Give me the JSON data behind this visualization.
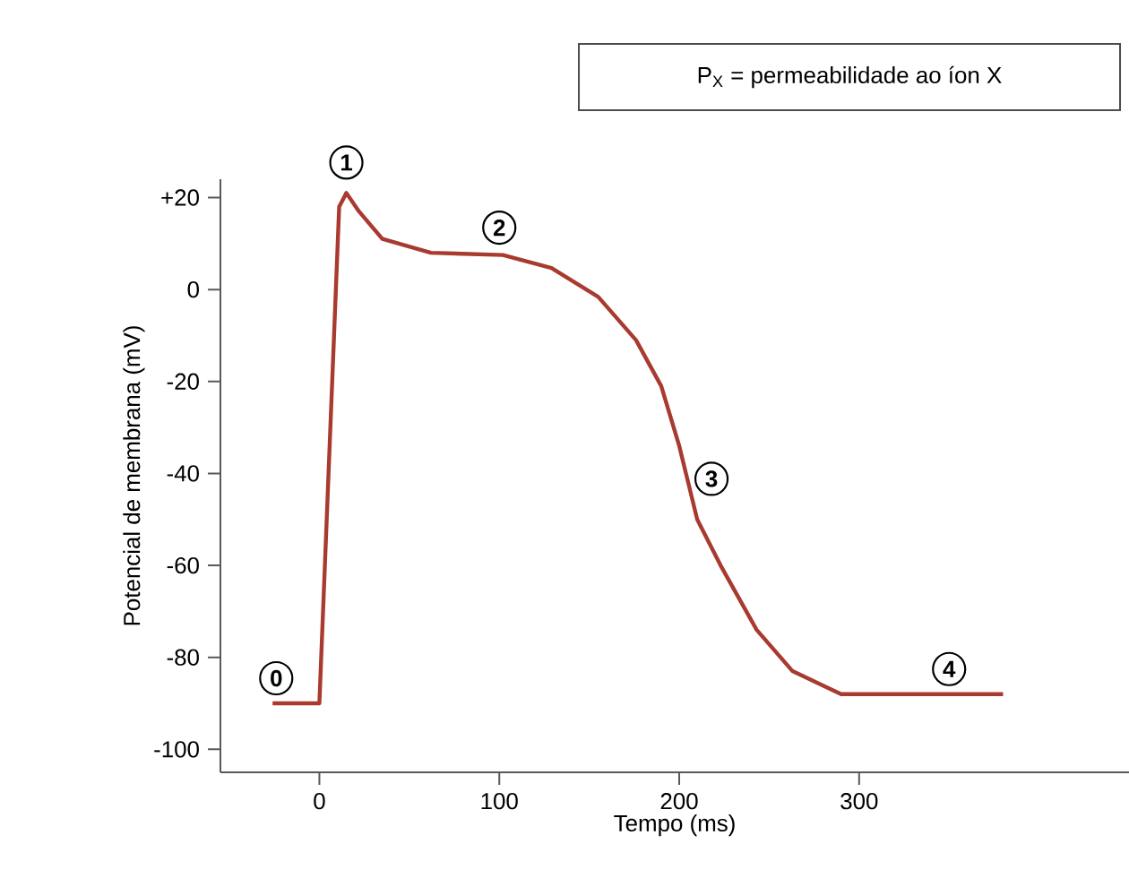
{
  "chart_data": {
    "type": "line",
    "xlabel": "Tempo (ms)",
    "ylabel": "Potencial de membrana (mV)",
    "x": [
      -26,
      0,
      11,
      15,
      22,
      35,
      62,
      102,
      129,
      155,
      176,
      190,
      200,
      210,
      223,
      243,
      263,
      290,
      330,
      380
    ],
    "series": [
      {
        "color": "#a83a2f",
        "values": [
          -90,
          -90,
          18,
          21,
          17,
          11,
          8,
          7.5,
          4.7,
          -1.6,
          -11,
          -21,
          -34,
          -50,
          -60,
          -74,
          -83,
          -88,
          -88,
          -88
        ]
      }
    ],
    "xlim": [
      -55,
      450
    ],
    "ylim": [
      -105,
      24
    ],
    "xticks": [
      0,
      100,
      200,
      300
    ],
    "yticks": [
      {
        "value": 20,
        "label": "+20"
      },
      0,
      -20,
      -40,
      -60,
      -80,
      -100
    ],
    "marker": "none",
    "line_style": "solid",
    "annotations": [
      {
        "text": "0",
        "x": -20,
        "y": -90
      },
      {
        "text": "1",
        "x": 15,
        "y": 21
      },
      {
        "text": "2",
        "x": 100,
        "y": 8
      },
      {
        "text": "3",
        "x": 205,
        "y": -40
      },
      {
        "text": "4",
        "x": 350,
        "y": -88
      },
      "P$_{X}$ = permeabilidade ao íon X"
    ]
  }
}
